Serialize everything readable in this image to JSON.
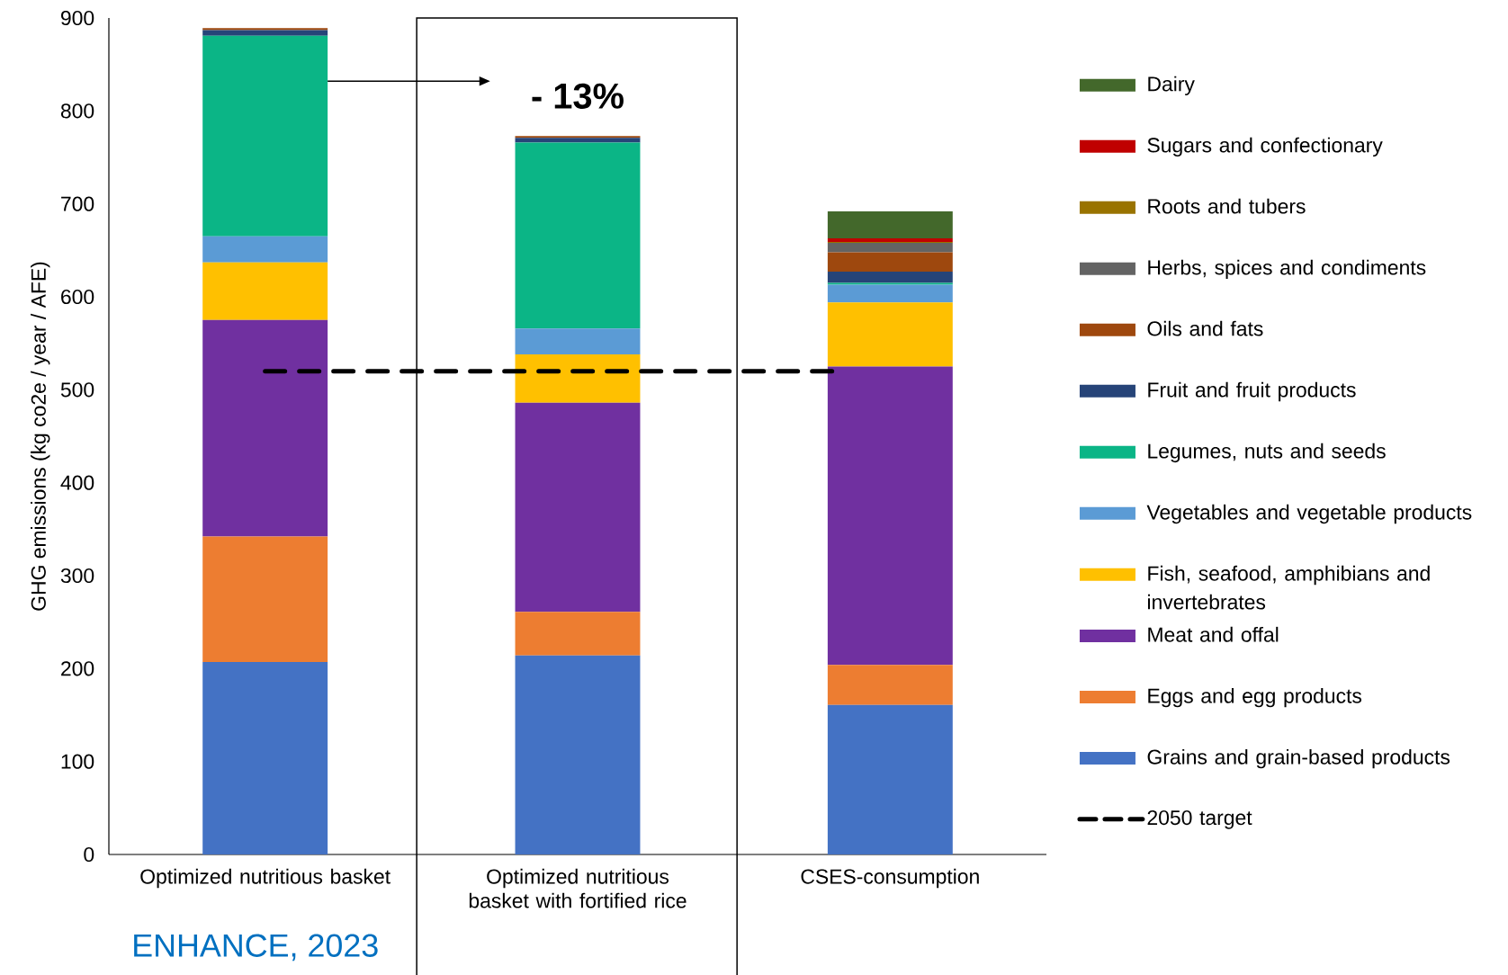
{
  "chart_data": {
    "type": "bar",
    "stacked": true,
    "ylabel": "GHG emissions (kg co2e / year / AFE)",
    "categories": [
      "Optimized nutritious basket",
      "Optimized nutritious basket with fortified rice",
      "CSES-consumption"
    ],
    "ylim": [
      0,
      900
    ],
    "yticks": [
      0,
      100,
      200,
      300,
      400,
      500,
      600,
      700,
      800,
      900
    ],
    "legend": "right",
    "series": [
      {
        "name": "Grains and grain-based products",
        "color": "#4472c4",
        "values": [
          207,
          214,
          161
        ]
      },
      {
        "name": "Eggs and egg products",
        "color": "#ed7d31",
        "values": [
          135,
          47,
          43
        ]
      },
      {
        "name": "Meat and offal",
        "color": "#7030a0",
        "values": [
          233,
          225,
          321
        ]
      },
      {
        "name": "Fish, seafood, amphibians and invertebrates",
        "color": "#ffc000",
        "values": [
          62,
          52,
          69
        ]
      },
      {
        "name": "Vegetables and vegetable products",
        "color": "#5b9bd5",
        "values": [
          28,
          28,
          19
        ]
      },
      {
        "name": "Legumes, nuts and seeds",
        "color": "#0bb586",
        "values": [
          216,
          200,
          2
        ]
      },
      {
        "name": "Fruit and fruit products",
        "color": "#264478",
        "values": [
          6,
          5,
          12
        ]
      },
      {
        "name": "Oils and fats",
        "color": "#9e480e",
        "values": [
          2,
          2,
          21
        ]
      },
      {
        "name": "Herbs, spices and condiments",
        "color": "#636363",
        "values": [
          0,
          0,
          10
        ]
      },
      {
        "name": "Roots and tubers",
        "color": "#997300",
        "values": [
          0,
          0,
          1
        ]
      },
      {
        "name": "Sugars and confectionary",
        "color": "#c00000",
        "values": [
          0,
          0,
          4
        ]
      },
      {
        "name": "Dairy",
        "color": "#43682b",
        "values": [
          0,
          0,
          29
        ]
      }
    ],
    "ref_lines": [
      {
        "axis": "y",
        "value": 520,
        "label": "2050 target",
        "color": "#000000",
        "line_style": "dashed"
      }
    ],
    "annotations": [
      "- 13%",
      "ENHANCE, 2023"
    ]
  }
}
